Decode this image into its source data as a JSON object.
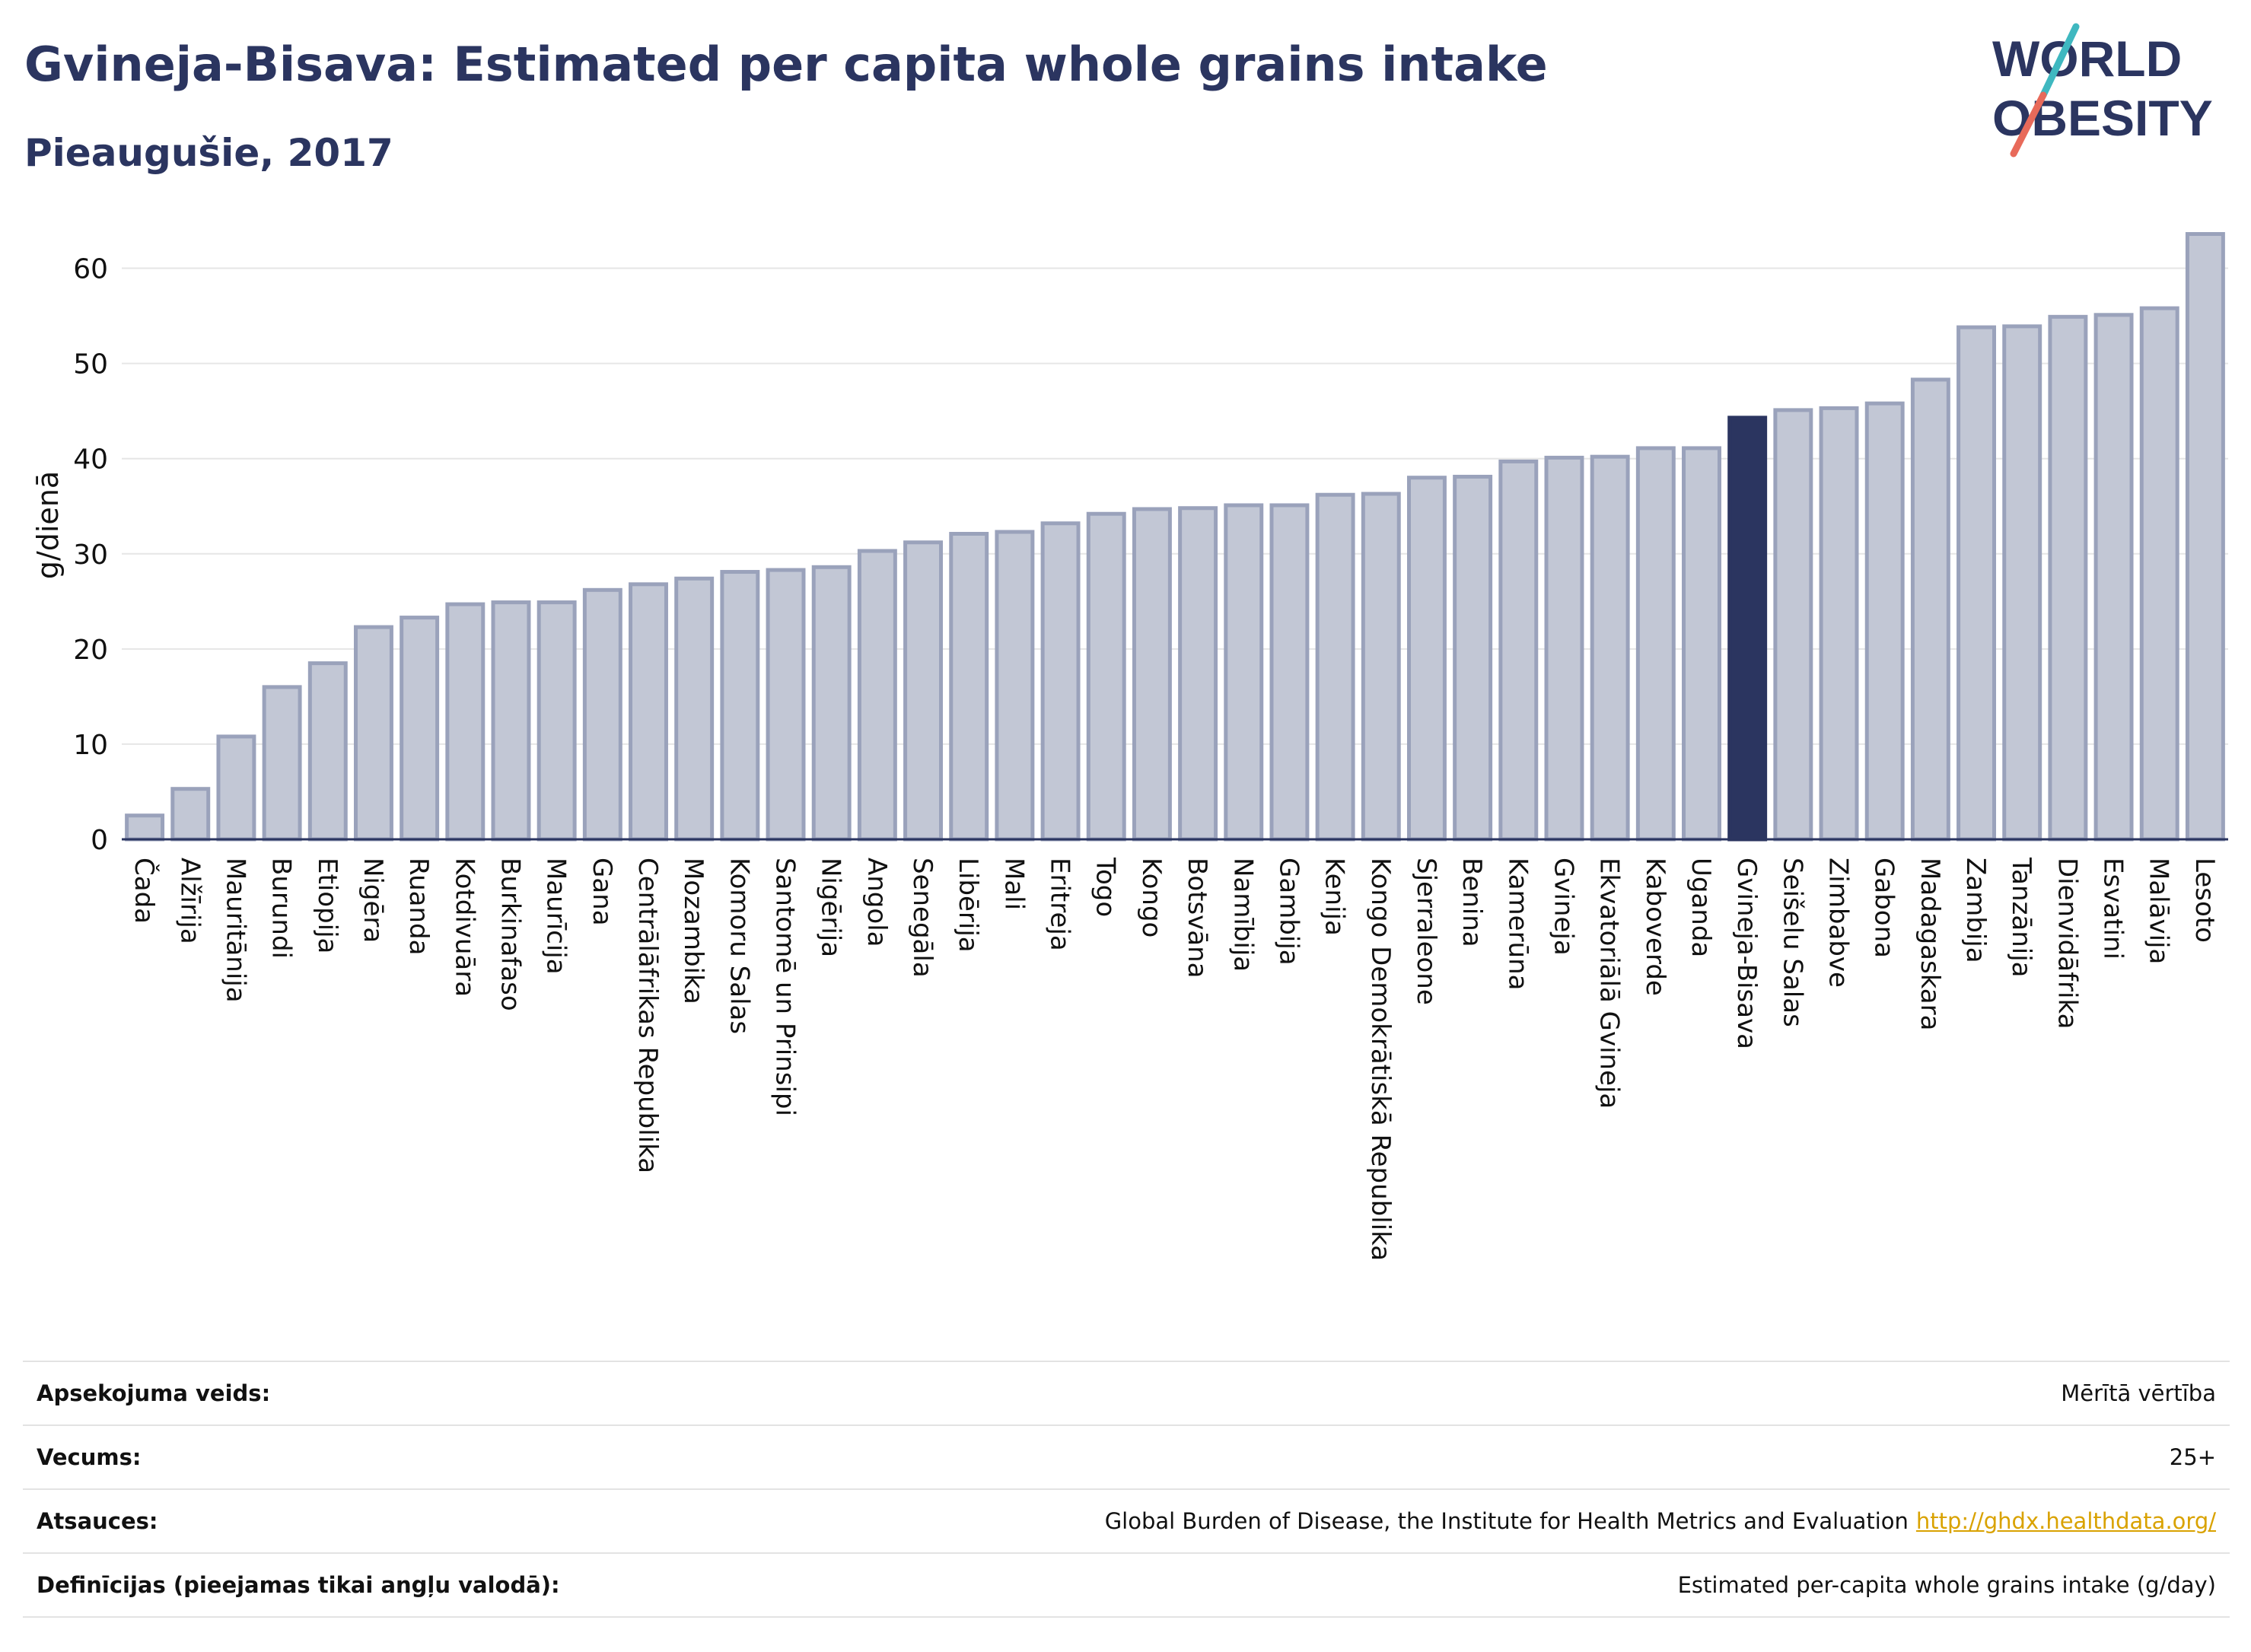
{
  "header": {
    "title": "Gvineja-Bisava: Estimated per capita whole grains intake",
    "subtitle": "Pieaugušie, 2017"
  },
  "logo": {
    "line1": "WORLD",
    "line2": "OBESITY",
    "colors": {
      "text": "#2b3560",
      "slash_top": "#3fb8c0",
      "slash_bottom": "#e86a5a"
    }
  },
  "chart_data": {
    "type": "bar",
    "ylabel": "g/dienā",
    "ylim": [
      0,
      65
    ],
    "yticks": [
      0,
      10,
      20,
      30,
      40,
      50,
      60
    ],
    "grid": true,
    "highlight": "Gvineja-Bisava",
    "colors": {
      "bar": "#c2c7d5",
      "bar_edge": "#9aa2bb",
      "highlight": "#2b3560"
    },
    "categories": [
      "Čada",
      "Alžīrija",
      "Mauritānija",
      "Burundi",
      "Etiopija",
      "Nigēra",
      "Ruanda",
      "Kotdivuāra",
      "Burkinafaso",
      "Maurīcija",
      "Gana",
      "Centrālāfrikas Republika",
      "Mozambika",
      "Komoru Salas",
      "Santomē un Prinsipi",
      "Nigērija",
      "Angola",
      "Senegāla",
      "Libērija",
      "Mali",
      "Eritreja",
      "Togo",
      "Kongo",
      "Botsvāna",
      "Namībija",
      "Gambija",
      "Kenija",
      "Kongo Demokrātiskā Republika",
      "Sjerraleone",
      "Benina",
      "Kamerūna",
      "Gvineja",
      "Ekvatoriālā Gvineja",
      "Kaboverde",
      "Uganda",
      "Gvineja-Bisava",
      "Seišelu Salas",
      "Zimbabve",
      "Gabona",
      "Madagaskara",
      "Zambija",
      "Tanzānija",
      "Dienvidāfrika",
      "Esvatini",
      "Malāvija",
      "Lesoto"
    ],
    "values": [
      2.5,
      5.3,
      10.8,
      16.0,
      18.5,
      22.3,
      23.3,
      24.7,
      24.9,
      24.9,
      26.2,
      26.8,
      27.4,
      28.1,
      28.3,
      28.6,
      30.3,
      31.2,
      32.1,
      32.3,
      33.2,
      34.2,
      34.7,
      34.8,
      35.1,
      35.1,
      36.2,
      36.3,
      38.0,
      38.1,
      39.7,
      40.1,
      40.2,
      41.1,
      41.1,
      44.3,
      45.1,
      45.3,
      45.8,
      48.3,
      53.8,
      53.9,
      54.9,
      55.1,
      55.8,
      63.6
    ]
  },
  "info": {
    "rows": [
      {
        "label": "Apsekojuma veids:",
        "value": "Mērītā vērtība"
      },
      {
        "label": "Vecums:",
        "value": "25+"
      },
      {
        "label": "Atsauces:",
        "value": "Global Burden of Disease, the Institute for Health Metrics and Evaluation",
        "link": "http://ghdx.healthdata.org/"
      },
      {
        "label": "Definīcijas (pieejamas tikai angļu valodā):",
        "value": "Estimated per-capita whole grains intake (g/day)"
      }
    ]
  }
}
